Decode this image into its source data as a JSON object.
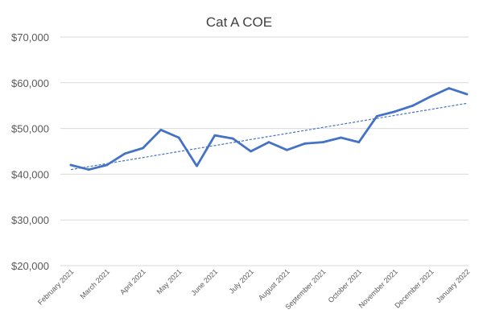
{
  "chart_data": {
    "type": "line",
    "title": "Cat A COE",
    "xlabel": "",
    "ylabel": "",
    "ylim": [
      20000,
      70000
    ],
    "y_ticks": [
      {
        "value": 20000,
        "label": "$20,000"
      },
      {
        "value": 30000,
        "label": "$30,000"
      },
      {
        "value": 40000,
        "label": "$40,000"
      },
      {
        "value": 50000,
        "label": "$50,000"
      },
      {
        "value": 60000,
        "label": "$60,000"
      },
      {
        "value": 70000,
        "label": "$70,000"
      }
    ],
    "x_tick_labels": [
      {
        "at": 0,
        "label": "February 2021"
      },
      {
        "at": 2,
        "label": "March 2021"
      },
      {
        "at": 4,
        "label": "April 2021"
      },
      {
        "at": 6,
        "label": "May 2021"
      },
      {
        "at": 8,
        "label": "June 2021"
      },
      {
        "at": 10,
        "label": "July 2021"
      },
      {
        "at": 12,
        "label": "August 2021"
      },
      {
        "at": 14,
        "label": "September 2021"
      },
      {
        "at": 16,
        "label": "October 2021"
      },
      {
        "at": 18,
        "label": "November 2021"
      },
      {
        "at": 20,
        "label": "December 2021"
      },
      {
        "at": 22,
        "label": "January 2022"
      }
    ],
    "grid": true,
    "legend": "none",
    "series": [
      {
        "color": "#4472c4",
        "values": [
          42000,
          41000,
          42000,
          44500,
          45700,
          49700,
          48000,
          41800,
          48500,
          47800,
          45000,
          47000,
          45300,
          46700,
          47000,
          48000,
          47000,
          52700,
          53700,
          55000,
          57000,
          58800,
          57500
        ]
      }
    ],
    "trendline": {
      "type": "linear",
      "style": "dashed",
      "color": "#4472c4",
      "start": 41000,
      "end": 55500
    },
    "colors": {
      "gridline": "#d9d9d9",
      "line": "#4472c4"
    }
  }
}
